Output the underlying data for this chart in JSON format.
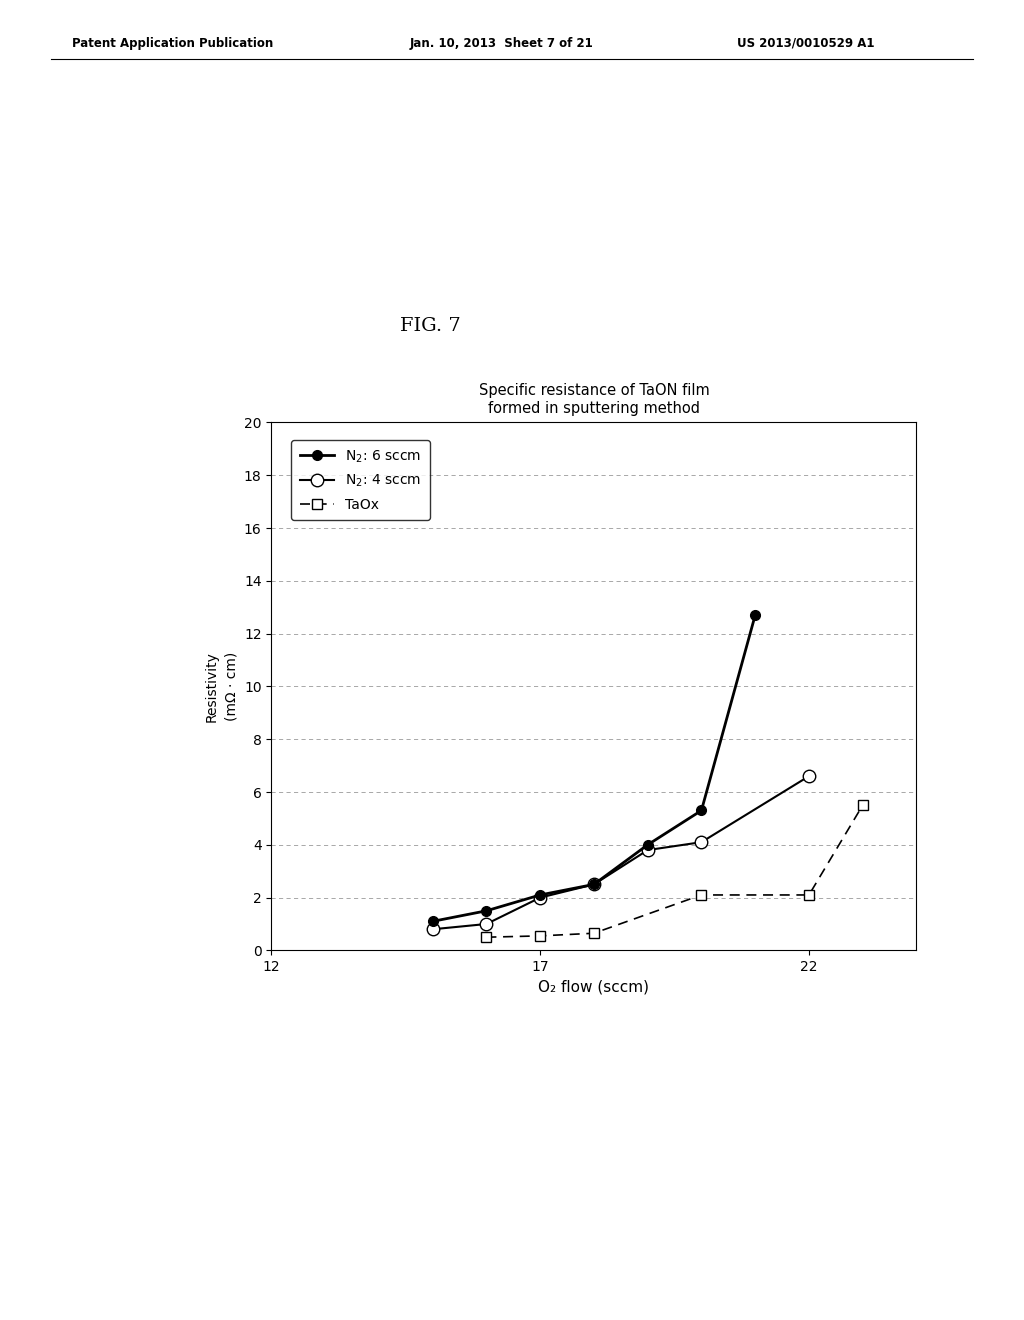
{
  "title": "Specific resistance of TaON film\nformed in sputtering method",
  "xlabel": "O₂ flow (sccm)",
  "ylabel": "Resistivity\n(mΩ · cm)",
  "xlim": [
    12,
    24
  ],
  "ylim": [
    0,
    20
  ],
  "xticks": [
    12,
    17,
    22
  ],
  "yticks": [
    0,
    2,
    4,
    6,
    8,
    10,
    12,
    14,
    16,
    18,
    20
  ],
  "series": [
    {
      "label": "N₂: 6 sccm",
      "x": [
        15,
        16,
        17,
        18,
        19,
        20,
        21
      ],
      "y": [
        1.1,
        1.5,
        2.1,
        2.5,
        4.0,
        5.3,
        12.7
      ],
      "color": "black",
      "linestyle": "-",
      "marker": "o",
      "markerfacecolor": "black",
      "markersize": 7
    },
    {
      "label": "N₂: 4 sccm",
      "x": [
        15,
        16,
        17,
        18,
        19,
        20,
        22
      ],
      "y": [
        0.8,
        1.0,
        2.0,
        2.5,
        3.8,
        4.1,
        6.6
      ],
      "color": "black",
      "linestyle": "-",
      "marker": "o",
      "markerfacecolor": "white",
      "markersize": 9
    },
    {
      "label": "TaOx",
      "x": [
        16,
        17,
        18,
        20,
        22,
        23
      ],
      "y": [
        0.5,
        0.55,
        0.65,
        2.1,
        2.1,
        5.5
      ],
      "color": "black",
      "linestyle": "--",
      "marker": "s",
      "markerfacecolor": "white",
      "markersize": 7
    }
  ],
  "header_left": "Patent Application Publication",
  "header_mid": "Jan. 10, 2013  Sheet 7 of 21",
  "header_right": "US 2013/0010529 A1",
  "fig_label": "FIG. 7",
  "background_color": "#ffffff"
}
